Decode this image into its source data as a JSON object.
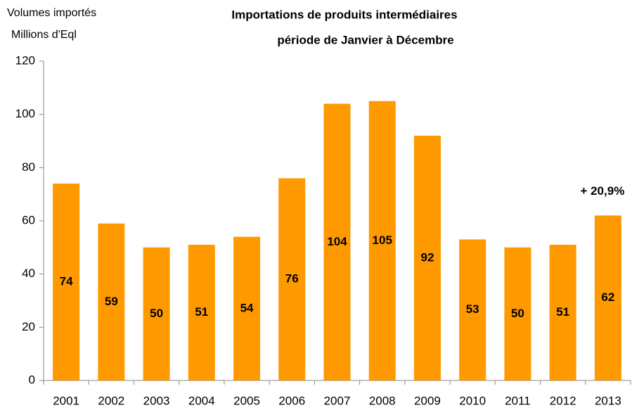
{
  "chart_data": {
    "type": "bar",
    "title": "Importations de produits intermédiaires",
    "subtitle": "période de Janvier à Décembre",
    "ylabel": [
      "Volumes importés",
      "Millions d'Eql"
    ],
    "categories": [
      "2001",
      "2002",
      "2003",
      "2004",
      "2005",
      "2006",
      "2007",
      "2008",
      "2009",
      "2010",
      "2011",
      "2012",
      "2013"
    ],
    "values": [
      74,
      59,
      50,
      51,
      54,
      76,
      104,
      105,
      92,
      53,
      50,
      51,
      62
    ],
    "color": "#ff9900",
    "ylim": [
      0,
      120
    ],
    "yticks": [
      0,
      20,
      40,
      60,
      80,
      100,
      120
    ],
    "grid": false,
    "annotation": "+ 20,9%"
  }
}
